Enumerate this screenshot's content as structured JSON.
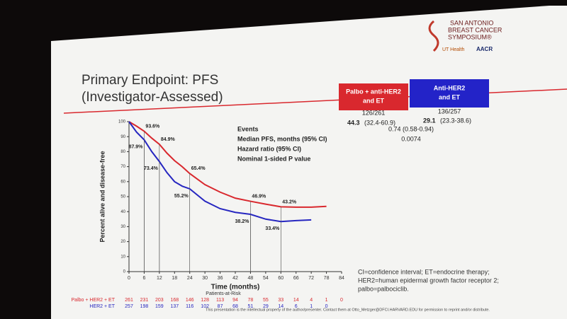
{
  "slide": {
    "logo": {
      "name": [
        "SAN ANTONIO",
        "BREAST CANCER",
        "SYMPOSIUM®"
      ],
      "partner1": "UT Health",
      "partner2": "AACR"
    },
    "title": [
      "Primary Endpoint: PFS",
      "(Investigator-Assessed)"
    ],
    "stats": {
      "headers": [
        [
          "Palbo + anti-HER2",
          "and ET"
        ],
        [
          "Anti-HER2",
          "and ET"
        ]
      ],
      "header_colors": [
        "#d9282e",
        "#2323c8"
      ],
      "labels": [
        "Events",
        "Median PFS, months (95% CI)",
        "Hazard ratio (95% CI)",
        "Nominal 1-sided P value"
      ],
      "events": [
        "126/261",
        "136/257"
      ],
      "median": [
        [
          "44.3",
          "(32.4-60.9)"
        ],
        [
          "29.1",
          "(23.3-38.6)"
        ]
      ],
      "hazard_ratio": "0.74 (0.58-0.94)",
      "p_value": "0.0074"
    },
    "footnote": [
      "CI=confidence interval; ET=endocrine therapy;",
      "HER2=human epidermal growth factor receptor 2;",
      "palbo=palbociclib."
    ],
    "notice": "This presentation is the intellectual property of the author/presenter. Contact them at Otto_Metzger@DFCI.HARVARD.EDU for permission to reprint and/or distribute."
  },
  "chart_data": {
    "type": "line",
    "xlabel": "Time (months)",
    "ylabel": "Percent alive and disease-free",
    "xlim": [
      0,
      84
    ],
    "xticks": [
      0,
      6,
      12,
      18,
      24,
      30,
      36,
      42,
      48,
      54,
      60,
      66,
      72,
      78,
      84
    ],
    "ylim": [
      0,
      100
    ],
    "yticks": [
      0,
      10,
      20,
      30,
      40,
      50,
      60,
      70,
      80,
      90,
      100
    ],
    "series": [
      {
        "name": "Palbo + HER2 + ET",
        "color": "#d9282e",
        "x": [
          0,
          3,
          6,
          9,
          12,
          15,
          18,
          21,
          24,
          30,
          36,
          42,
          48,
          54,
          60,
          66,
          72,
          78
        ],
        "values": [
          100,
          97,
          93.6,
          89,
          84.9,
          79,
          74,
          70,
          65.4,
          58,
          53,
          49,
          46.9,
          45,
          43.2,
          43,
          43,
          43.5
        ],
        "value_labels": [
          null,
          null,
          "93.6%",
          null,
          "84.9%",
          null,
          null,
          null,
          "65.4%",
          null,
          null,
          null,
          "46.9%",
          null,
          "43.2%",
          null,
          null,
          null
        ]
      },
      {
        "name": "HER2 + ET",
        "color": "#2626c0",
        "x": [
          0,
          3,
          6,
          9,
          12,
          15,
          18,
          21,
          24,
          30,
          36,
          42,
          48,
          54,
          60,
          66,
          72,
          78
        ],
        "values": [
          100,
          93,
          87.9,
          80,
          73.4,
          66,
          60,
          57,
          55.2,
          47,
          42,
          39.5,
          38.2,
          35,
          33.4,
          34,
          34.5,
          null
        ],
        "value_labels": [
          null,
          null,
          "87.9%",
          null,
          "73.4%",
          null,
          null,
          null,
          "55.2%",
          null,
          null,
          null,
          "38.2%",
          null,
          "33.4%",
          null,
          null,
          null
        ]
      }
    ],
    "risk_table": {
      "title": "Patients-at-Risk",
      "counts": [
        [
          261,
          231,
          203,
          168,
          146,
          128,
          113,
          94,
          78,
          55,
          33,
          14,
          4,
          1,
          0
        ],
        [
          257,
          198,
          159,
          137,
          116,
          102,
          87,
          68,
          51,
          29,
          14,
          6,
          1,
          0
        ]
      ]
    }
  }
}
